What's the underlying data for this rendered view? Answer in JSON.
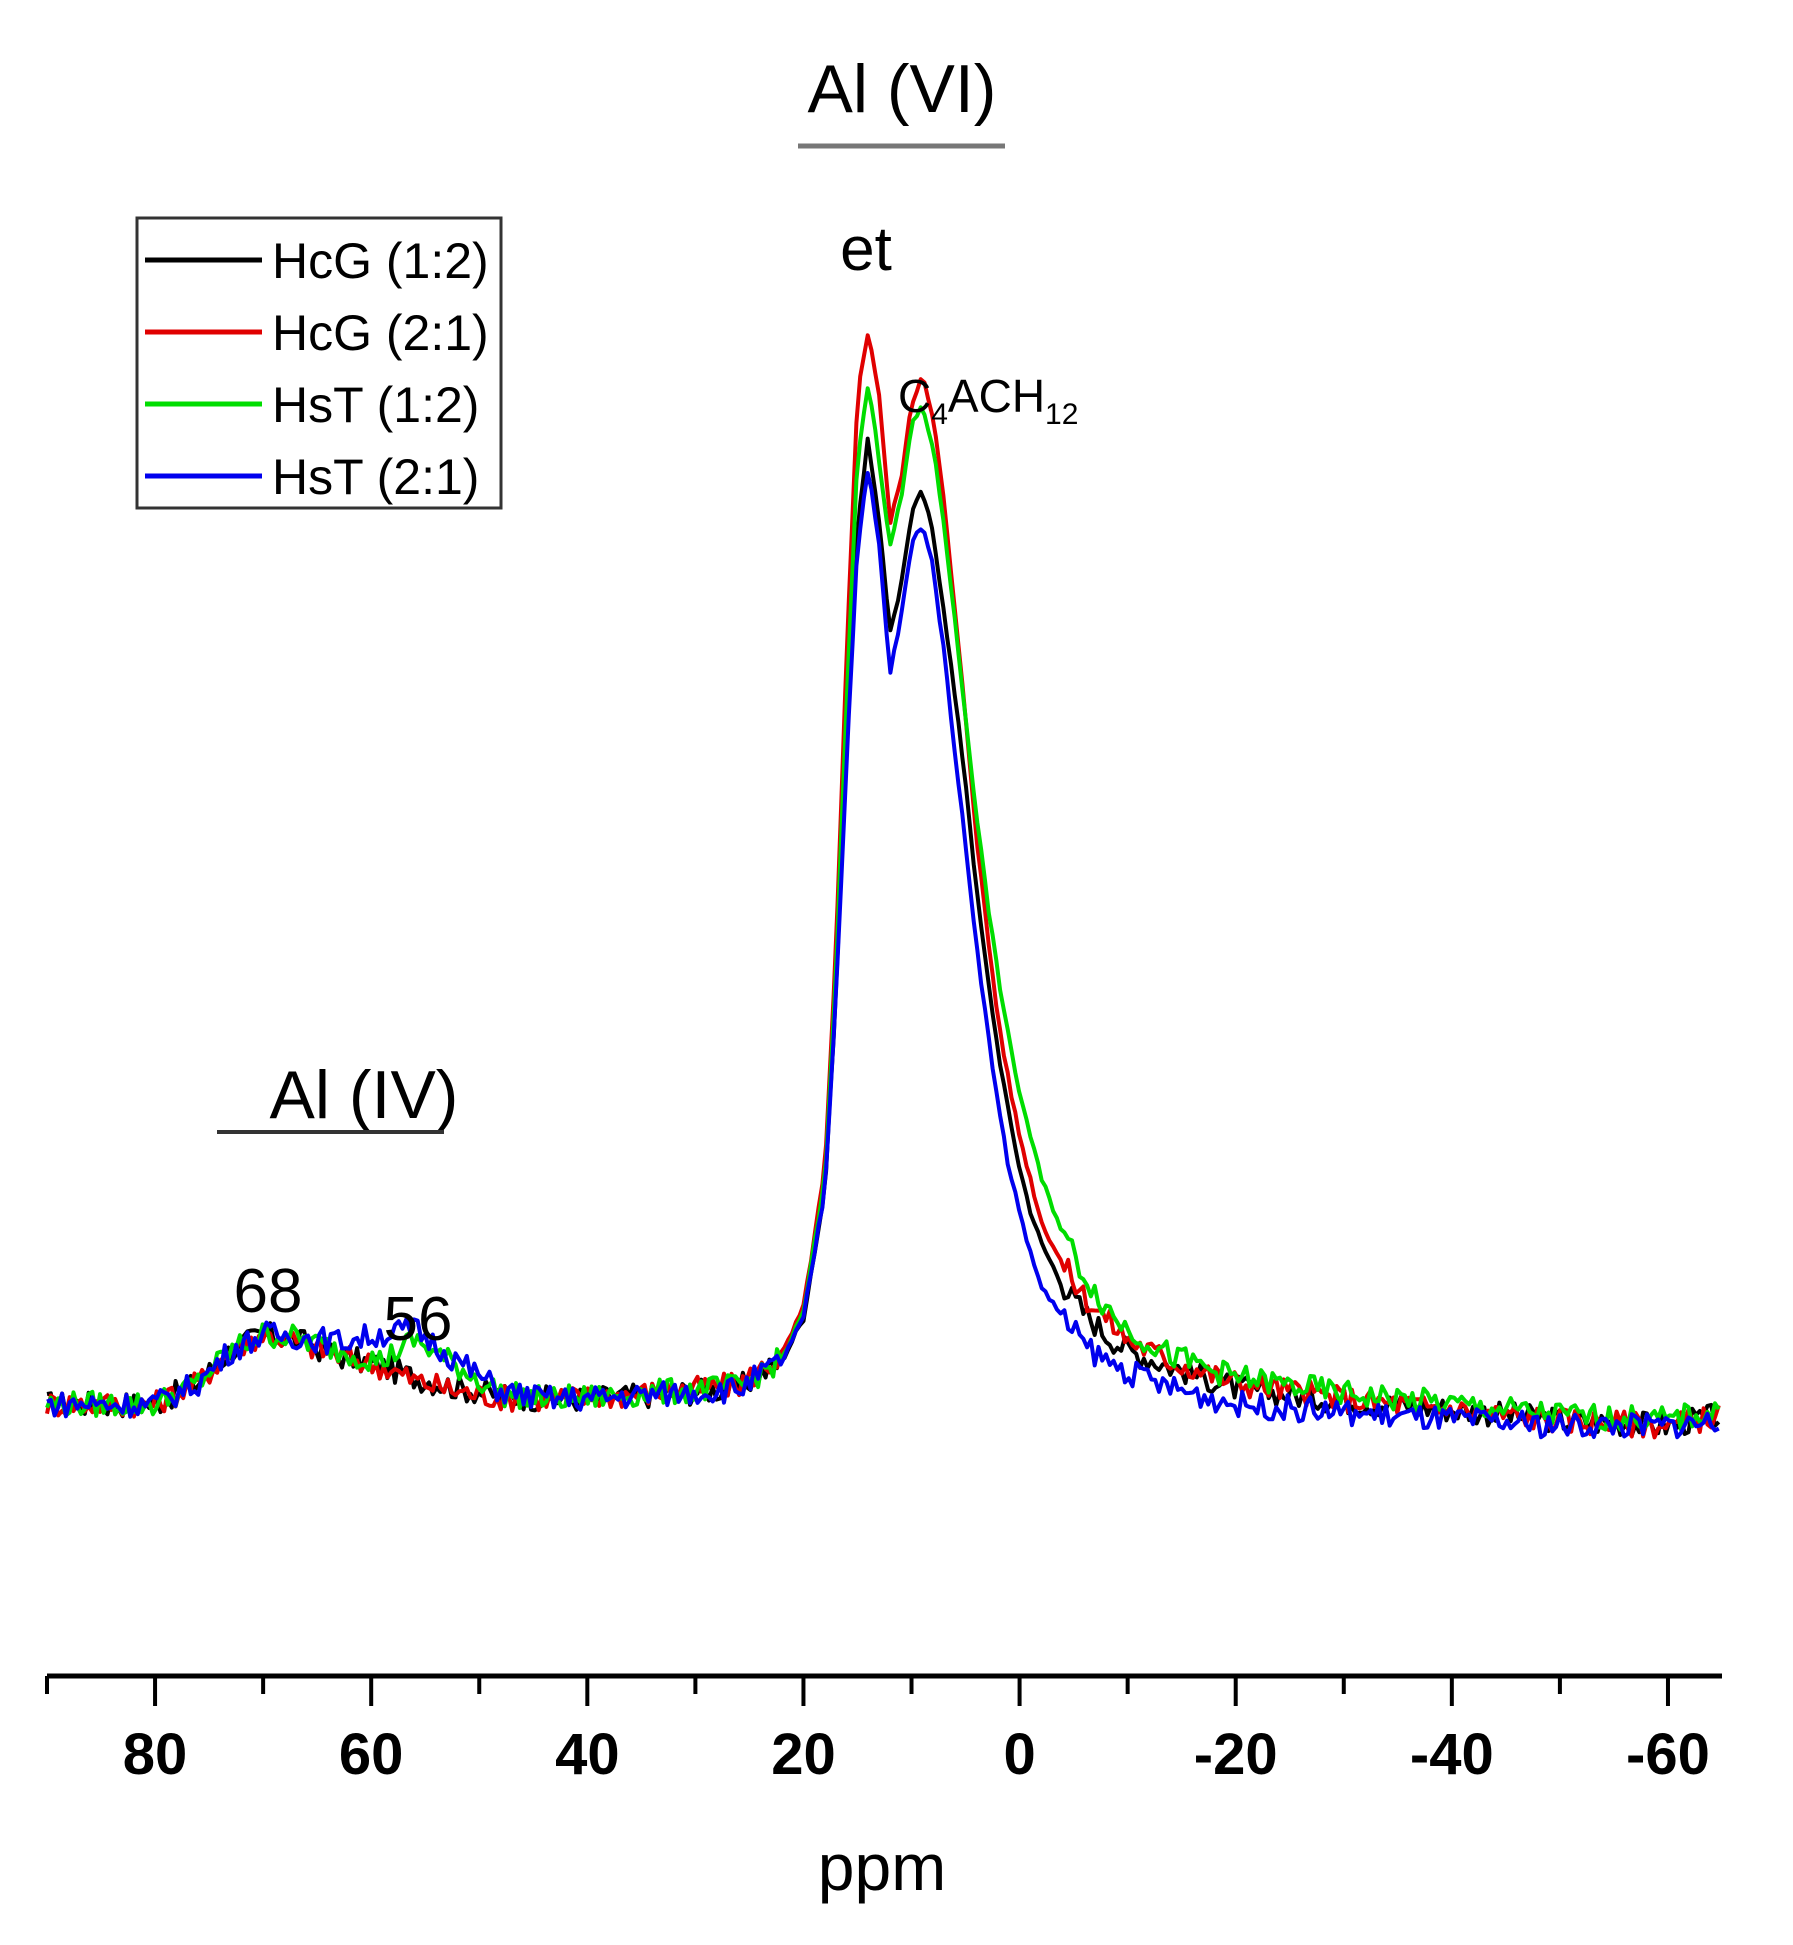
{
  "chart_data": {
    "type": "line",
    "title": "",
    "xlabel": "ppm",
    "ylabel": "",
    "xlim": [
      90,
      -65
    ],
    "ylim": [
      -0.08,
      1.0
    ],
    "x_reversed": true,
    "grid": false,
    "legend_position": "top-left",
    "x_ticks": [
      80,
      60,
      40,
      20,
      0,
      -20,
      -40,
      -60
    ],
    "x_tick_labels": [
      "80",
      "60",
      "40",
      "20",
      "0",
      "-20",
      "-40",
      "-60"
    ],
    "series": [
      {
        "name": "HcG (1:2)",
        "color": "#000000",
        "x": [
          90,
          80,
          76,
          73,
          70,
          67,
          63,
          59,
          56,
          52,
          48,
          44,
          40,
          32,
          26,
          22,
          20,
          18,
          17,
          16,
          15,
          14,
          13,
          12,
          11,
          10,
          9,
          8,
          7,
          6,
          5,
          4,
          3,
          2,
          1,
          0,
          -1,
          -2,
          -4,
          -6,
          -8,
          -10,
          -14,
          -20,
          -30,
          -40,
          -50,
          -60,
          -65
        ],
        "y": [
          0.0,
          0.0,
          0.02,
          0.05,
          0.065,
          0.06,
          0.045,
          0.035,
          0.025,
          0.015,
          0.008,
          0.005,
          0.005,
          0.01,
          0.015,
          0.04,
          0.08,
          0.2,
          0.38,
          0.62,
          0.82,
          0.9,
          0.82,
          0.72,
          0.76,
          0.83,
          0.85,
          0.81,
          0.74,
          0.66,
          0.58,
          0.48,
          0.4,
          0.33,
          0.27,
          0.22,
          0.18,
          0.15,
          0.11,
          0.085,
          0.065,
          0.05,
          0.035,
          0.015,
          0.003,
          -0.005,
          -0.015,
          -0.02,
          -0.01
        ]
      },
      {
        "name": "HcG (2:1)",
        "color": "#e00000",
        "x": [
          90,
          80,
          76,
          73,
          70,
          67,
          63,
          59,
          56,
          52,
          48,
          44,
          40,
          32,
          26,
          22,
          20,
          18,
          17,
          16,
          15,
          14,
          13,
          12,
          11,
          10,
          9,
          8,
          7,
          6,
          5,
          4,
          3,
          2,
          1,
          0,
          -1,
          -2,
          -4,
          -6,
          -8,
          -10,
          -14,
          -20,
          -30,
          -40,
          -50,
          -60,
          -65
        ],
        "y": [
          0.0,
          0.0,
          0.02,
          0.05,
          0.065,
          0.058,
          0.045,
          0.035,
          0.022,
          0.012,
          0.006,
          0.005,
          0.006,
          0.012,
          0.018,
          0.045,
          0.09,
          0.22,
          0.42,
          0.7,
          0.94,
          1.0,
          0.94,
          0.82,
          0.86,
          0.93,
          0.96,
          0.92,
          0.84,
          0.74,
          0.64,
          0.53,
          0.44,
          0.36,
          0.3,
          0.25,
          0.21,
          0.17,
          0.13,
          0.1,
          0.08,
          0.06,
          0.04,
          0.02,
          0.005,
          -0.005,
          -0.015,
          -0.02,
          -0.01
        ]
      },
      {
        "name": "HsT (1:2)",
        "color": "#00dd00",
        "x": [
          90,
          80,
          76,
          73,
          70,
          67,
          63,
          59,
          56,
          52,
          48,
          44,
          40,
          32,
          26,
          22,
          20,
          18,
          17,
          16,
          15,
          14,
          13,
          12,
          11,
          10,
          9,
          8,
          7,
          6,
          5,
          4,
          3,
          2,
          1,
          0,
          -1,
          -2,
          -4,
          -6,
          -8,
          -10,
          -14,
          -20,
          -30,
          -40,
          -50,
          -60,
          -65
        ],
        "y": [
          0.0,
          0.0,
          0.02,
          0.05,
          0.065,
          0.062,
          0.05,
          0.04,
          0.06,
          0.035,
          0.01,
          0.005,
          0.006,
          0.012,
          0.016,
          0.042,
          0.085,
          0.21,
          0.4,
          0.66,
          0.88,
          0.95,
          0.88,
          0.8,
          0.84,
          0.91,
          0.93,
          0.89,
          0.82,
          0.73,
          0.64,
          0.55,
          0.47,
          0.4,
          0.34,
          0.29,
          0.25,
          0.21,
          0.16,
          0.12,
          0.09,
          0.07,
          0.045,
          0.025,
          0.01,
          0.0,
          -0.01,
          -0.015,
          -0.005
        ]
      },
      {
        "name": "HsT (2:1)",
        "color": "#0000ee",
        "x": [
          90,
          80,
          76,
          73,
          70,
          67,
          63,
          59,
          56,
          52,
          48,
          44,
          40,
          32,
          26,
          22,
          20,
          18,
          17,
          16,
          15,
          14,
          13,
          12,
          11,
          10,
          9,
          8,
          7,
          6,
          5,
          4,
          3,
          2,
          1,
          0,
          -1,
          -2,
          -4,
          -6,
          -8,
          -10,
          -14,
          -20,
          -30,
          -40,
          -50,
          -60,
          -65
        ],
        "y": [
          0.0,
          0.0,
          0.02,
          0.05,
          0.065,
          0.063,
          0.058,
          0.065,
          0.07,
          0.04,
          0.012,
          0.005,
          0.005,
          0.01,
          0.014,
          0.04,
          0.08,
          0.2,
          0.38,
          0.6,
          0.8,
          0.87,
          0.8,
          0.68,
          0.73,
          0.8,
          0.82,
          0.78,
          0.7,
          0.61,
          0.52,
          0.43,
          0.35,
          0.28,
          0.22,
          0.18,
          0.14,
          0.11,
          0.08,
          0.055,
          0.04,
          0.03,
          0.015,
          0.0,
          -0.008,
          -0.015,
          -0.02,
          -0.02,
          -0.015
        ]
      }
    ],
    "annotations": {
      "al_vi": "Al (VI)",
      "al_iv": "Al (IV)",
      "et": "et",
      "c4ach12_base": "C",
      "c4ach12_sub1": "4",
      "c4ach12_mid": "ACH",
      "c4ach12_sub2": "12",
      "peak68": "68",
      "peak56": "56"
    }
  }
}
